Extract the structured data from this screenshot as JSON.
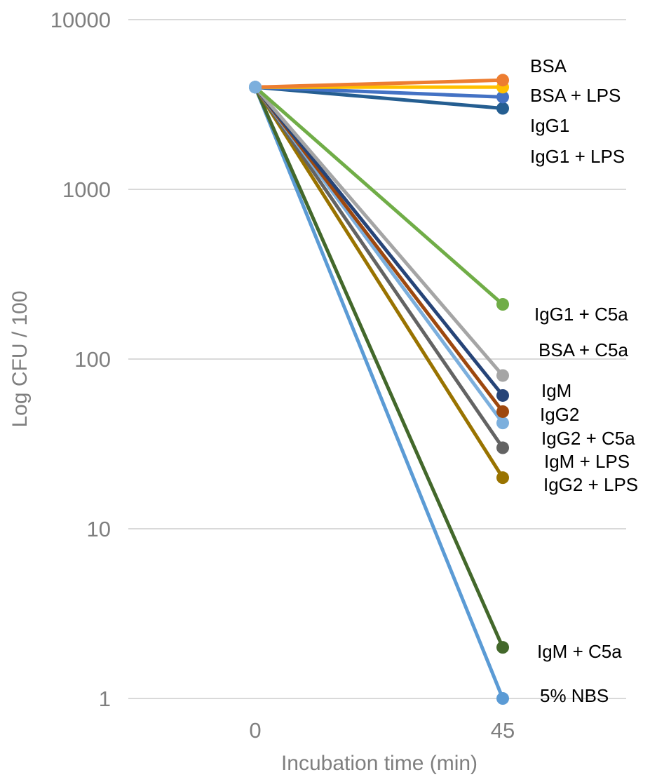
{
  "chart_data": {
    "type": "line",
    "title": "",
    "xlabel": "Incubation time (min)",
    "ylabel": "Log CFU / 100",
    "y_scale": "log",
    "ylim": [
      1,
      10000
    ],
    "y_ticks": [
      "1",
      "10",
      "100",
      "1000",
      "10000"
    ],
    "categories": [
      "0",
      "45"
    ],
    "grid": true,
    "legend": "none",
    "series": [
      {
        "name": "BSA",
        "values": [
          4000,
          4400
        ],
        "color": "#ed7d31"
      },
      {
        "name": "BSA + LPS",
        "values": [
          4000,
          4000
        ],
        "color": "#ffc000"
      },
      {
        "name": "IgG1",
        "values": [
          4000,
          3500
        ],
        "color": "#4472c4"
      },
      {
        "name": "IgG1 + LPS",
        "values": [
          4000,
          3000
        ],
        "color": "#255e91"
      },
      {
        "name": "IgG1 + C5a",
        "values": [
          4000,
          210
        ],
        "color": "#70ad47"
      },
      {
        "name": "BSA + C5a",
        "values": [
          4000,
          80
        ],
        "color": "#a5a5a5"
      },
      {
        "name": "IgM",
        "values": [
          4000,
          61
        ],
        "color": "#264478"
      },
      {
        "name": "IgG2",
        "values": [
          4000,
          49
        ],
        "color": "#9e480e"
      },
      {
        "name": "IgG2 + C5a",
        "values": [
          4000,
          42
        ],
        "color": "#7cafdd"
      },
      {
        "name": "IgM + LPS",
        "values": [
          4000,
          30
        ],
        "color": "#636363"
      },
      {
        "name": "IgG2 + LPS",
        "values": [
          4000,
          20
        ],
        "color": "#997300"
      },
      {
        "name": "IgM + C5a",
        "values": [
          4000,
          2
        ],
        "color": "#43682b"
      },
      {
        "name": "5% NBS",
        "values": [
          4000,
          1
        ],
        "color": "#5b9bd5"
      }
    ],
    "labels_right": [
      "BSA",
      "BSA + LPS",
      "IgG1",
      "IgG1 + LPS",
      "IgG1 + C5a",
      "BSA + C5a",
      "IgM",
      "IgG2",
      "IgG2 + C5a",
      "IgM + LPS",
      "IgG2 + LPS",
      "IgM + C5a",
      "5% NBS"
    ]
  }
}
